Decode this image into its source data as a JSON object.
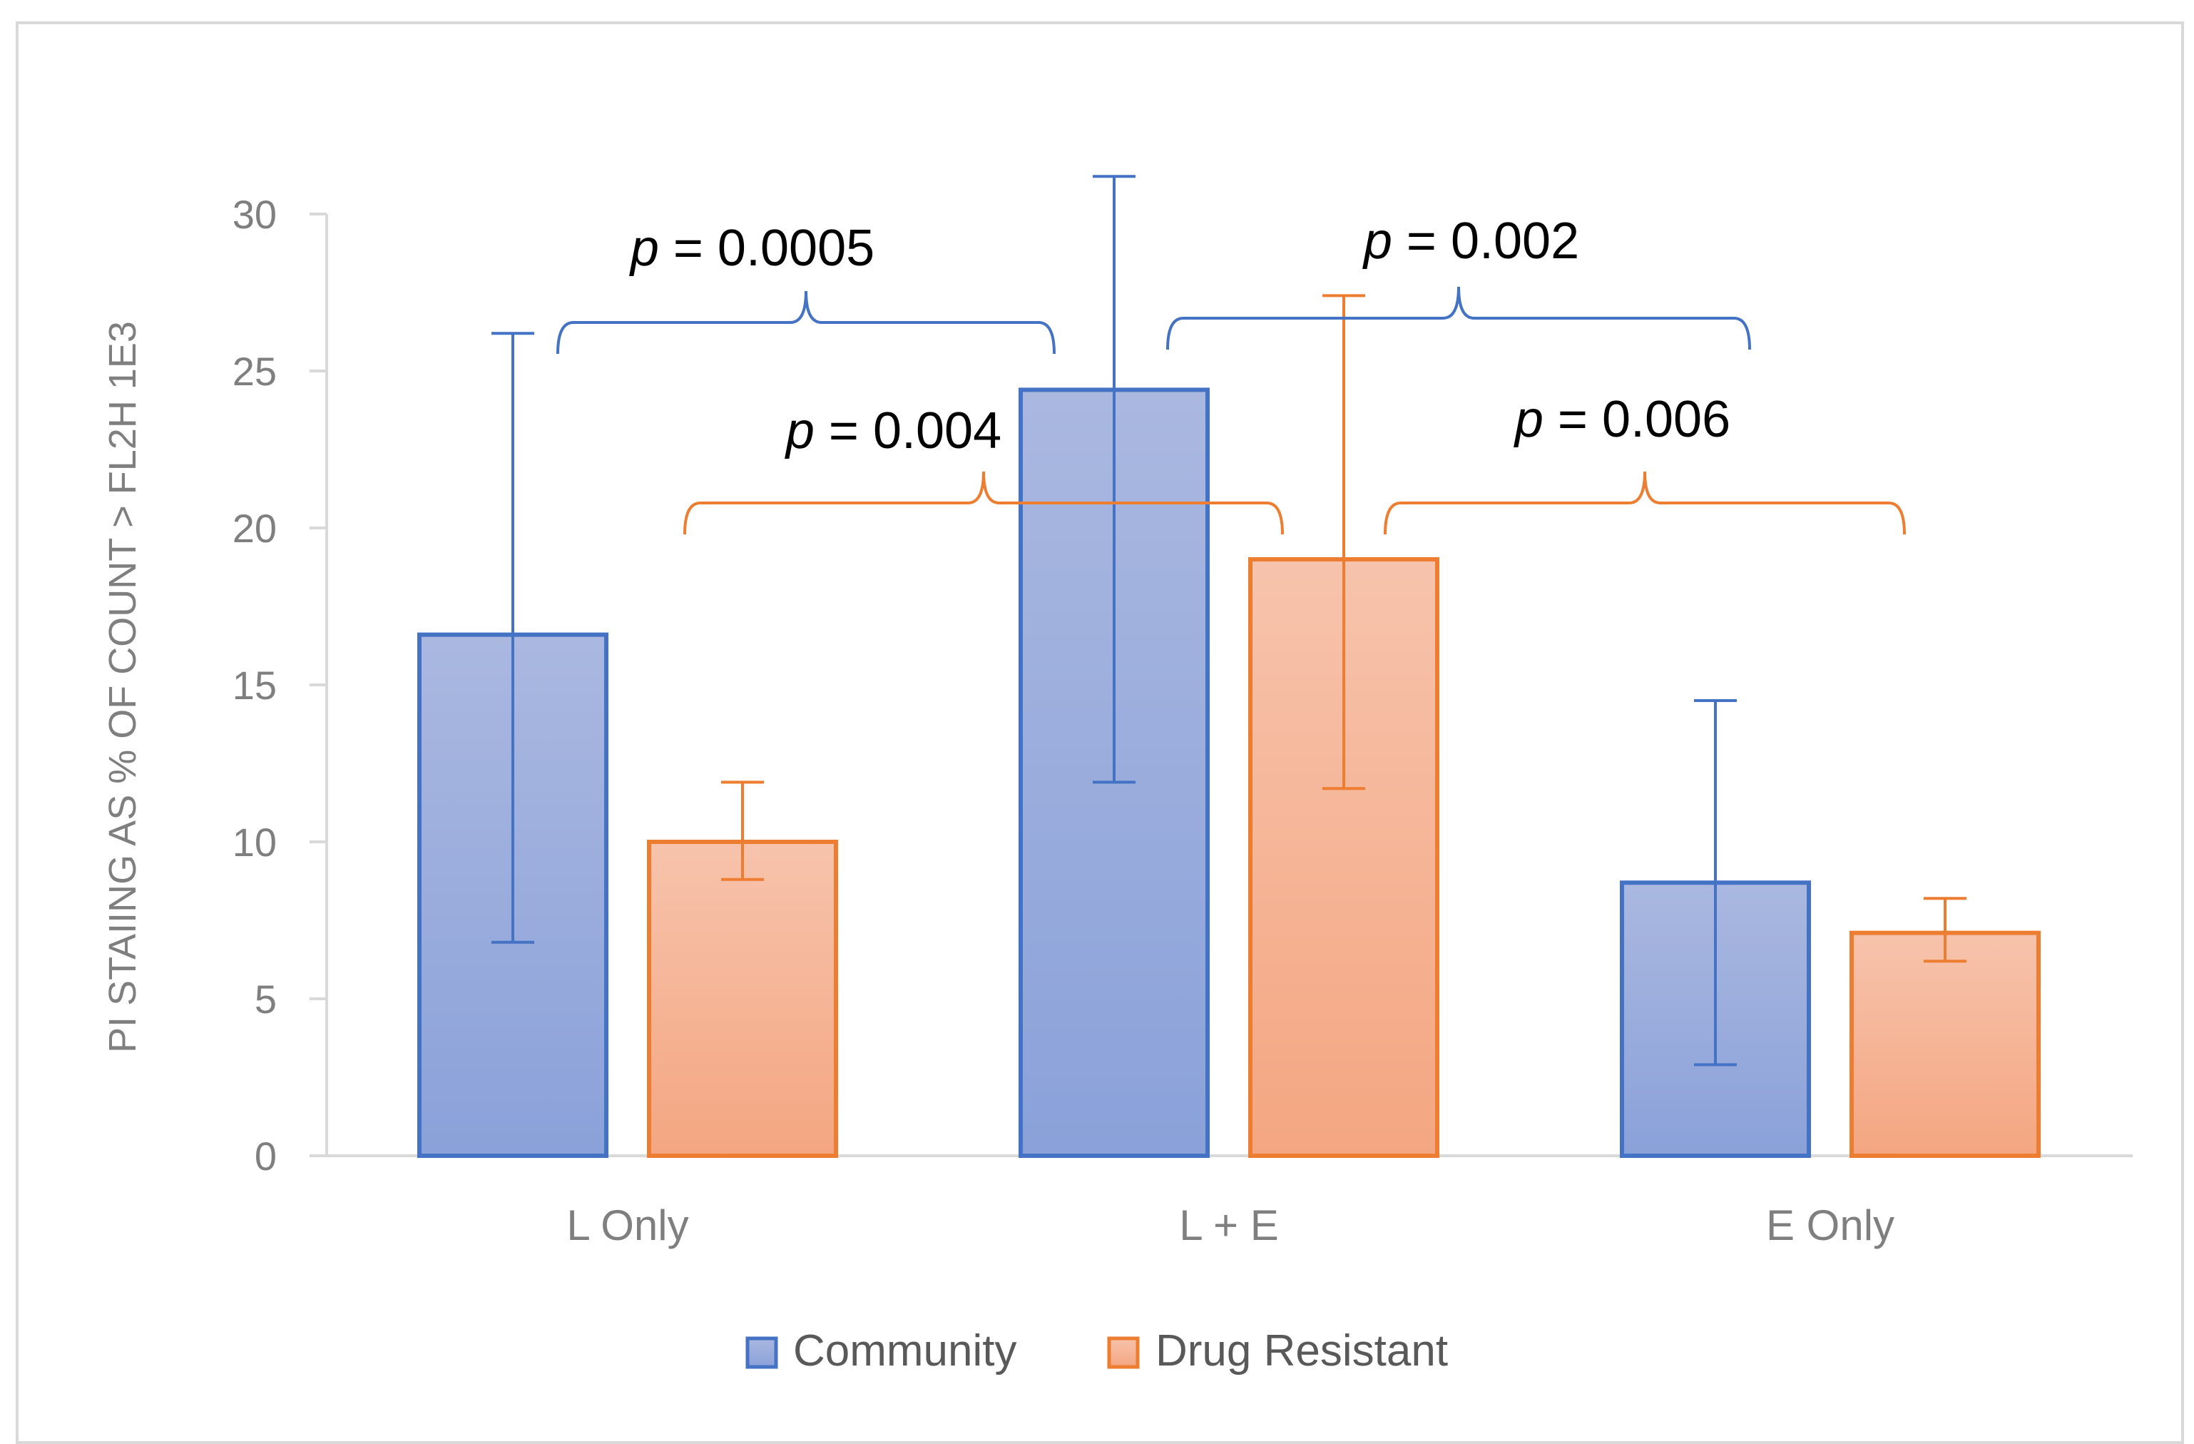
{
  "chart_data": {
    "type": "bar",
    "title": "",
    "xlabel": "",
    "ylabel": "PI STAIING AS % OF COUNT > FL2H 1E3",
    "ylim": [
      0,
      30
    ],
    "yticks": [
      "0",
      "5",
      "10",
      "15",
      "20",
      "25",
      "30"
    ],
    "categories": [
      "L Only",
      "L + E",
      "E Only"
    ],
    "series": [
      {
        "name": "Community",
        "values": [
          16.6,
          24.4,
          8.7
        ],
        "error_low": [
          6.8,
          11.9,
          2.9
        ],
        "error_high": [
          26.2,
          31.2,
          14.5
        ],
        "fill_top": "#aab8e0",
        "fill_bottom": "#8aa1d9",
        "stroke": "#4472c4"
      },
      {
        "name": "Drug Resistant",
        "values": [
          10.0,
          19.0,
          7.1
        ],
        "error_low": [
          8.8,
          11.7,
          6.2
        ],
        "error_high": [
          11.9,
          27.4,
          8.2
        ],
        "fill_top": "#f7c3ac",
        "fill_bottom": "#f4a681",
        "stroke": "#ed7d31"
      }
    ],
    "legend_position": "bottom",
    "grid": false,
    "annotations": [
      {
        "label": "p",
        "value": " = 0.0005",
        "series": "Community",
        "from": "L Only",
        "to": "L + E"
      },
      {
        "label": "p",
        "value": " = 0.002",
        "series": "Community",
        "from": "L + E",
        "to": "E Only"
      },
      {
        "label": "p",
        "value": " = 0.004",
        "series": "Drug Resistant",
        "from": "L Only",
        "to": "L + E"
      },
      {
        "label": "p",
        "value": " = 0.006",
        "series": "Drug Resistant",
        "from": "L + E",
        "to": "E Only"
      }
    ]
  }
}
